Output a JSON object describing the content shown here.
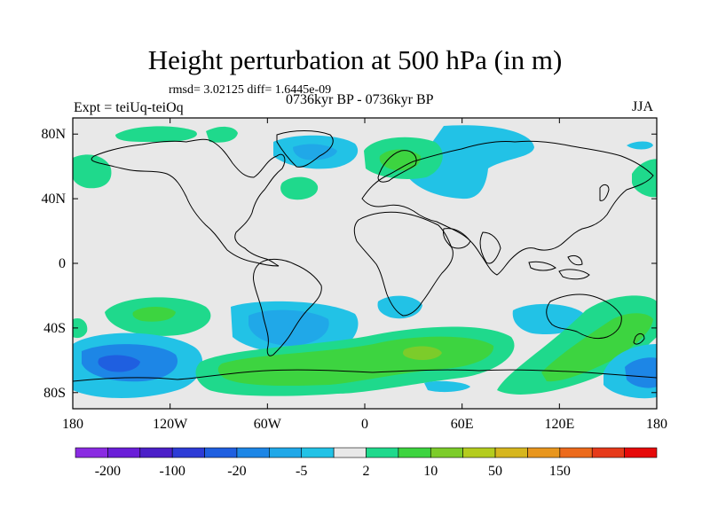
{
  "title": "Height perturbation at 500 hPa (in m)",
  "stats": "rmsd= 3.02125 diff= 1.6445e-09",
  "experiment": "Expt = teiUq-teiOq",
  "period": "0736kyr BP - 0736kyr BP",
  "season": "JJA",
  "map": {
    "lon_range": [
      -180,
      180
    ],
    "lat_range": [
      -90,
      90
    ],
    "lon_ticks": [
      "180",
      "120W",
      "60W",
      "0",
      "60E",
      "120E",
      "180"
    ],
    "lat_ticks": [
      "80N",
      "40N",
      "0",
      "40S",
      "80S"
    ],
    "background_color": "#e8e8e8"
  },
  "colorbar": {
    "colors": [
      "#8a2be2",
      "#6a1ed8",
      "#4b1fc8",
      "#2d3bd6",
      "#1f5fe0",
      "#1d86e6",
      "#20a8e8",
      "#22c2e6",
      "#e8e8e8",
      "#1fd98c",
      "#3dd440",
      "#7ccc2a",
      "#b4cc1e",
      "#d6b61e",
      "#e8961e",
      "#ec6a1c",
      "#e63a1a",
      "#e60a0a"
    ],
    "tick_labels": [
      "-200",
      "-100",
      "-20",
      "-5",
      "2",
      "10",
      "50",
      "150"
    ]
  },
  "anomaly_regions": [
    {
      "lon": -45,
      "lat": 82,
      "level": 9
    },
    {
      "lon": -70,
      "lat": 75,
      "level": 9
    },
    {
      "lon": -155,
      "lat": 65,
      "level": 9
    },
    {
      "lon": -125,
      "lat": 55,
      "level": 9
    },
    {
      "lon": -42,
      "lat": 66,
      "level": 7
    },
    {
      "lon": 30,
      "lat": 70,
      "level": 9
    },
    {
      "lon": 40,
      "lat": 70,
      "level": 10
    },
    {
      "lon": 85,
      "lat": 78,
      "level": 7
    },
    {
      "lon": 75,
      "lat": 58,
      "level": 7
    },
    {
      "lon": -40,
      "lat": 50,
      "level": 9
    },
    {
      "lon": 170,
      "lat": 55,
      "level": 9
    },
    {
      "lon": -135,
      "lat": -32,
      "level": 10
    },
    {
      "lon": -40,
      "lat": -40,
      "level": 6
    },
    {
      "lon": 30,
      "lat": -30,
      "level": 7
    },
    {
      "lon": 105,
      "lat": -38,
      "level": 7
    },
    {
      "lon": 150,
      "lat": -35,
      "level": 9
    },
    {
      "lon": -155,
      "lat": -62,
      "level": 4
    },
    {
      "lon": -175,
      "lat": -38,
      "level": 9
    },
    {
      "lon": 20,
      "lat": -60,
      "level": 10
    },
    {
      "lon": 45,
      "lat": -55,
      "level": 11
    },
    {
      "lon": 130,
      "lat": -55,
      "level": 10
    },
    {
      "lon": 172,
      "lat": -65,
      "level": 5
    },
    {
      "lon": 55,
      "lat": -76,
      "level": 7
    }
  ]
}
